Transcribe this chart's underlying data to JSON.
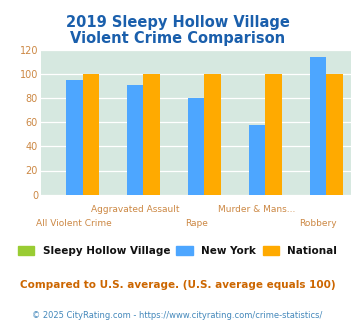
{
  "title_line1": "2019 Sleepy Hollow Village",
  "title_line2": "Violent Crime Comparison",
  "title_color": "#1a5fac",
  "categories_top": [
    "",
    "Aggravated Assault",
    "",
    "Murder & Mans...",
    ""
  ],
  "categories_bot": [
    "All Violent Crime",
    "",
    "Rape",
    "",
    "Robbery"
  ],
  "ny_values": [
    95,
    91,
    80,
    58,
    114
  ],
  "national_values": [
    100,
    100,
    100,
    100,
    100
  ],
  "shv_values": [
    0,
    0,
    0,
    0,
    0
  ],
  "ny_color": "#4da6ff",
  "national_color": "#ffaa00",
  "shv_color": "#99cc33",
  "fig_bg": "#ffffff",
  "plot_bg": "#d6e8e0",
  "ylim": [
    0,
    120
  ],
  "yticks": [
    0,
    20,
    40,
    60,
    80,
    100,
    120
  ],
  "legend_labels": [
    "Sleepy Hollow Village",
    "New York",
    "National"
  ],
  "legend_text_color": "#111111",
  "footnote1": "Compared to U.S. average. (U.S. average equals 100)",
  "footnote2": "© 2025 CityRating.com - https://www.cityrating.com/crime-statistics/",
  "footnote1_color": "#cc6600",
  "footnote2_color": "#4488bb",
  "tick_color": "#cc8844",
  "ytick_color": "#cc8844"
}
